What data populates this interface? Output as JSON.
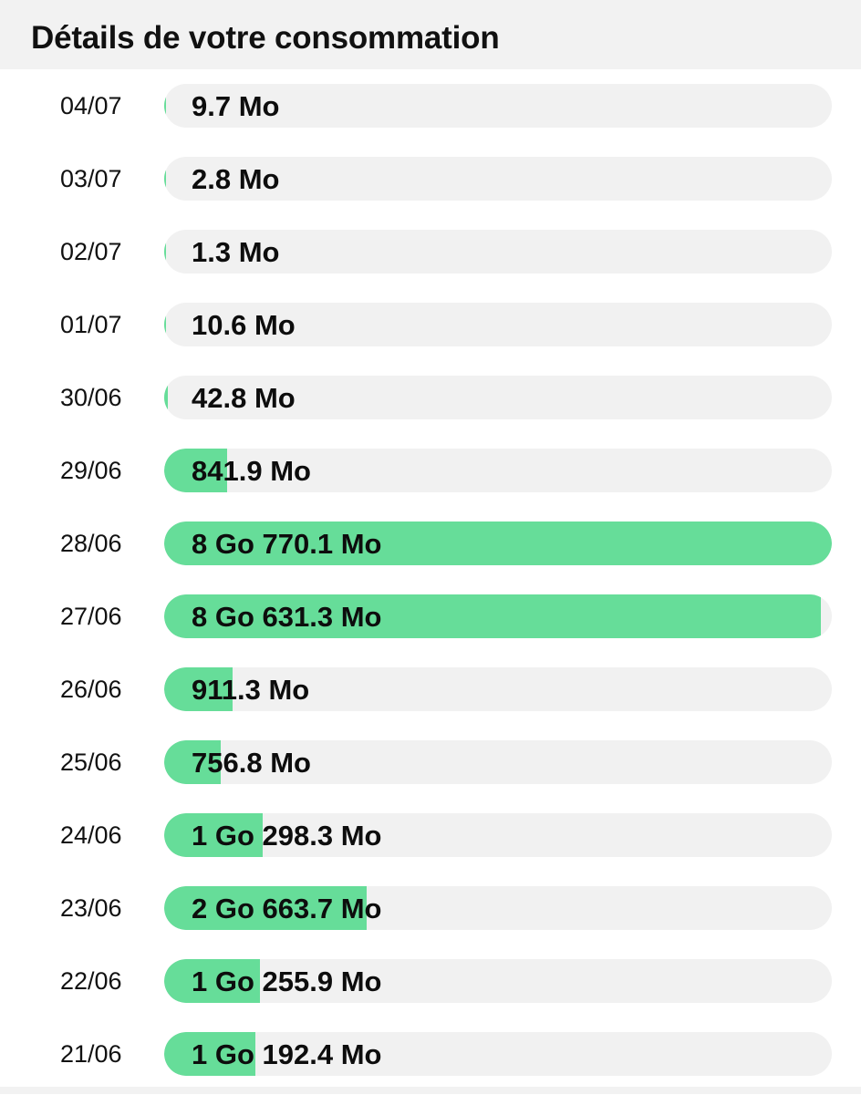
{
  "header": {
    "title": "Détails de votre consommation"
  },
  "colors": {
    "fill": "#66dd99",
    "track": "#f1f1f1",
    "header_bg": "#f2f2f2"
  },
  "rows": [
    {
      "date": "04/07",
      "value": "9.7 Mo",
      "fraction": 0.001
    },
    {
      "date": "03/07",
      "value": "2.8 Mo",
      "fraction": 0.0003
    },
    {
      "date": "02/07",
      "value": "1.3 Mo",
      "fraction": 0.00015
    },
    {
      "date": "01/07",
      "value": "10.6 Mo",
      "fraction": 0.0012
    },
    {
      "date": "30/06",
      "value": "42.8 Mo",
      "fraction": 0.0048
    },
    {
      "date": "29/06",
      "value": "841.9 Mo",
      "fraction": 0.094
    },
    {
      "date": "28/06",
      "value": "8 Go 770.1 Mo",
      "fraction": 1.0
    },
    {
      "date": "27/06",
      "value": "8 Go 631.3 Mo",
      "fraction": 0.984
    },
    {
      "date": "26/06",
      "value": "911.3 Mo",
      "fraction": 0.102
    },
    {
      "date": "25/06",
      "value": "756.8 Mo",
      "fraction": 0.085
    },
    {
      "date": "24/06",
      "value": "1 Go 298.3 Mo",
      "fraction": 0.148
    },
    {
      "date": "23/06",
      "value": "2 Go 663.7 Mo",
      "fraction": 0.303
    },
    {
      "date": "22/06",
      "value": "1 Go 255.9 Mo",
      "fraction": 0.143
    },
    {
      "date": "21/06",
      "value": "1 Go 192.4 Mo",
      "fraction": 0.136
    }
  ]
}
